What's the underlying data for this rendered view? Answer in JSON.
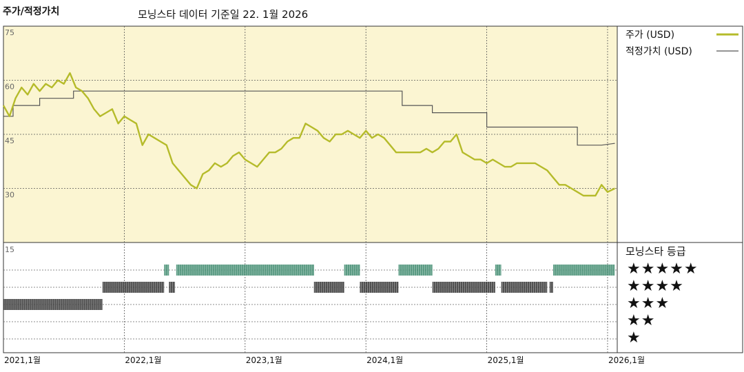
{
  "header": {
    "title": "주가/적정가치",
    "subtitle": "모닝스타 데이터 기준일 22. 1월 2026"
  },
  "legend": {
    "price_label": "주가 (USD)",
    "fair_label": "적정가치 (USD)"
  },
  "rating": {
    "title": "모닝스타 등급",
    "levels": [
      "★★★★★",
      "★★★★",
      "★★★",
      "★★",
      "★"
    ]
  },
  "colors": {
    "price": "#b5bb2a",
    "fair": "#555555",
    "plot_bg": "#fbf5d2",
    "rating_5": "#3d8a6d",
    "rating_4": "#333333",
    "rating_3": "#333333"
  },
  "chart_data": {
    "type": "line",
    "x_ticks": [
      "2021,1월",
      "2022,1월",
      "2023,1월",
      "2024,1월",
      "2025,1월",
      "2026,1월"
    ],
    "y_ticks": [
      75,
      60,
      45,
      30
    ],
    "ylim": [
      15,
      75
    ],
    "rating_axis_label": "15",
    "series": [
      {
        "name": "주가 (USD)",
        "x": [
          2021.0,
          2021.05,
          2021.1,
          2021.15,
          2021.2,
          2021.25,
          2021.3,
          2021.35,
          2021.4,
          2021.45,
          2021.5,
          2021.55,
          2021.6,
          2021.65,
          2021.7,
          2021.75,
          2021.8,
          2021.85,
          2021.9,
          2021.95,
          2022.0,
          2022.05,
          2022.1,
          2022.15,
          2022.2,
          2022.25,
          2022.3,
          2022.35,
          2022.4,
          2022.45,
          2022.5,
          2022.55,
          2022.6,
          2022.65,
          2022.7,
          2022.75,
          2022.8,
          2022.85,
          2022.9,
          2022.95,
          2023.0,
          2023.05,
          2023.1,
          2023.15,
          2023.2,
          2023.25,
          2023.3,
          2023.35,
          2023.4,
          2023.45,
          2023.5,
          2023.55,
          2023.6,
          2023.65,
          2023.7,
          2023.75,
          2023.8,
          2023.85,
          2023.9,
          2023.95,
          2024.0,
          2024.05,
          2024.1,
          2024.15,
          2024.2,
          2024.25,
          2024.3,
          2024.35,
          2024.4,
          2024.45,
          2024.5,
          2024.55,
          2024.6,
          2024.65,
          2024.7,
          2024.75,
          2024.8,
          2024.85,
          2024.9,
          2024.95,
          2025.0,
          2025.05,
          2025.1,
          2025.15,
          2025.2,
          2025.25,
          2025.3,
          2025.35,
          2025.4,
          2025.45,
          2025.5,
          2025.55,
          2025.6,
          2025.65,
          2025.7,
          2025.75,
          2025.8,
          2025.85,
          2025.9,
          2025.95,
          2026.0,
          2026.06
        ],
        "y": [
          53,
          50,
          55,
          58,
          56,
          59,
          57,
          59,
          58,
          60,
          59,
          62,
          58,
          57,
          55,
          52,
          50,
          51,
          52,
          48,
          50,
          49,
          48,
          42,
          45,
          44,
          43,
          42,
          37,
          35,
          33,
          31,
          30,
          34,
          35,
          37,
          36,
          37,
          39,
          40,
          38,
          37,
          36,
          38,
          40,
          40,
          41,
          43,
          44,
          44,
          48,
          47,
          46,
          44,
          43,
          45,
          45,
          46,
          45,
          44,
          46,
          44,
          45,
          44,
          42,
          40,
          40,
          40,
          40,
          40,
          41,
          40,
          41,
          43,
          43,
          45,
          40,
          39,
          38,
          38,
          37,
          38,
          37,
          36,
          36,
          37,
          37,
          37,
          37,
          36,
          35,
          33,
          31,
          31,
          30,
          29,
          28,
          28,
          28,
          31,
          29,
          30
        ]
      },
      {
        "name": "적정가치 (USD)",
        "x": [
          2021.0,
          2021.08,
          2021.08,
          2021.3,
          2021.3,
          2021.58,
          2021.58,
          2022.0,
          2022.5,
          2023.0,
          2023.5,
          2024.0,
          2024.3,
          2024.3,
          2024.55,
          2024.55,
          2025.0,
          2025.0,
          2025.75,
          2025.75,
          2025.95,
          2026.06
        ],
        "y": [
          50,
          50,
          53,
          53,
          55,
          55,
          57,
          57,
          57,
          57,
          57,
          57,
          57,
          53,
          53,
          51,
          51,
          47,
          47,
          42,
          42,
          42.5
        ]
      }
    ],
    "ratings": [
      {
        "stars": 3,
        "from": 2021.0,
        "to": 2021.82
      },
      {
        "stars": 4,
        "from": 2021.82,
        "to": 2022.33
      },
      {
        "stars": 4,
        "from": 2022.37,
        "to": 2022.42
      },
      {
        "stars": 5,
        "from": 2022.33,
        "to": 2022.37
      },
      {
        "stars": 5,
        "from": 2022.43,
        "to": 2023.57
      },
      {
        "stars": 4,
        "from": 2023.57,
        "to": 2023.82
      },
      {
        "stars": 5,
        "from": 2023.82,
        "to": 2023.95
      },
      {
        "stars": 4,
        "from": 2023.95,
        "to": 2024.27
      },
      {
        "stars": 5,
        "from": 2024.27,
        "to": 2024.55
      },
      {
        "stars": 4,
        "from": 2024.55,
        "to": 2025.07
      },
      {
        "stars": 5,
        "from": 2025.07,
        "to": 2025.12
      },
      {
        "stars": 4,
        "from": 2025.12,
        "to": 2025.5
      },
      {
        "stars": 4,
        "from": 2025.52,
        "to": 2025.55
      },
      {
        "stars": 5,
        "from": 2025.55,
        "to": 2026.06
      }
    ],
    "xlim": [
      2021.0,
      2026.08
    ]
  }
}
